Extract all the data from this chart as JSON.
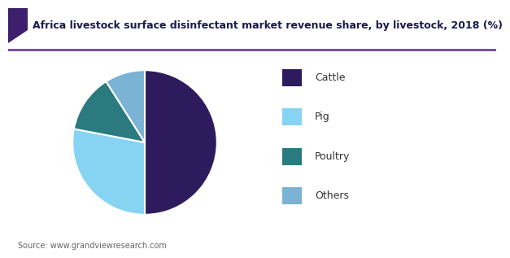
{
  "title": "Africa livestock surface disinfectant market revenue share, by livestock, 2018 (%)",
  "labels": [
    "Cattle",
    "Pig",
    "Poultry",
    "Others"
  ],
  "sizes": [
    50,
    28,
    13,
    9
  ],
  "colors": [
    "#2d1b5e",
    "#87d3f2",
    "#2a7a80",
    "#7ab3d4"
  ],
  "startangle": 90,
  "background_color": "#ffffff",
  "title_color": "#1a1a4e",
  "source_text": "Source: www.grandviewresearch.com",
  "wedge_edge_color": "#ffffff",
  "accent_bar_color": "#3d1f6e",
  "underline_color": "#7b4fa0",
  "legend_text_color": "#333333",
  "source_text_color": "#666666"
}
